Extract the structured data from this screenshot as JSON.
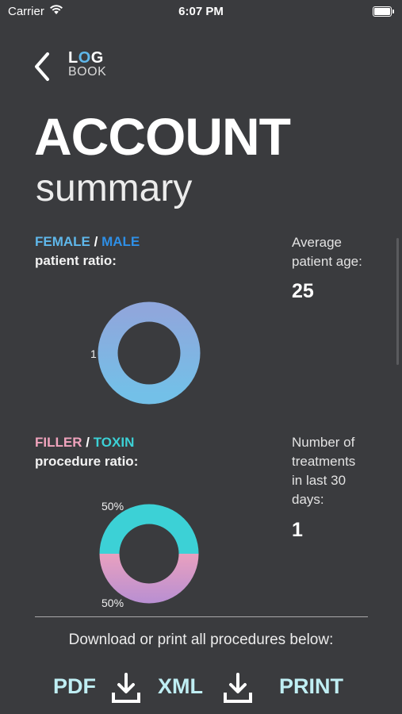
{
  "status": {
    "carrier": "Carrier",
    "time": "6:07 PM"
  },
  "header": {
    "logo_top_l": "L",
    "logo_top_o": "O",
    "logo_top_g": "G",
    "logo_bottom": "BOOK"
  },
  "title": {
    "main": "ACCOUNT",
    "sub": "summary"
  },
  "gender": {
    "female_label": "FEMALE",
    "slash": "/",
    "male_label": "MALE",
    "caption": "patient ratio:",
    "colors": {
      "female": "#5fb7ea",
      "male": "#2e8fe6"
    }
  },
  "age": {
    "caption_line1": "Average",
    "caption_line2": "patient age:",
    "value": "25"
  },
  "procedure": {
    "filler_label": "FILLER",
    "slash": "/",
    "toxin_label": "TOXIN",
    "caption": "procedure ratio:",
    "colors": {
      "filler": "#f0a3bd",
      "toxin": "#3cd1d6"
    }
  },
  "treatments": {
    "caption_line1": "Number of",
    "caption_line2": "treatments",
    "caption_line3": "in last 30",
    "caption_line4": "days:",
    "value": "1"
  },
  "footer": {
    "download_caption": "Download or print all procedures below:",
    "pdf_label": "PDF",
    "xml_label": "XML",
    "print_label": "PRINT"
  },
  "chart_data": [
    {
      "type": "pie",
      "style": "donut",
      "labels": [
        "1"
      ],
      "values": [
        1
      ],
      "colors": [
        "#7fb0dd"
      ]
    },
    {
      "type": "pie",
      "style": "donut",
      "labels": [
        "TOXIN",
        "FILLER"
      ],
      "values": [
        50,
        50
      ],
      "data_labels": [
        "50%",
        "50%"
      ],
      "colors": [
        "#3cd1d6",
        "#d59ac4"
      ]
    }
  ]
}
